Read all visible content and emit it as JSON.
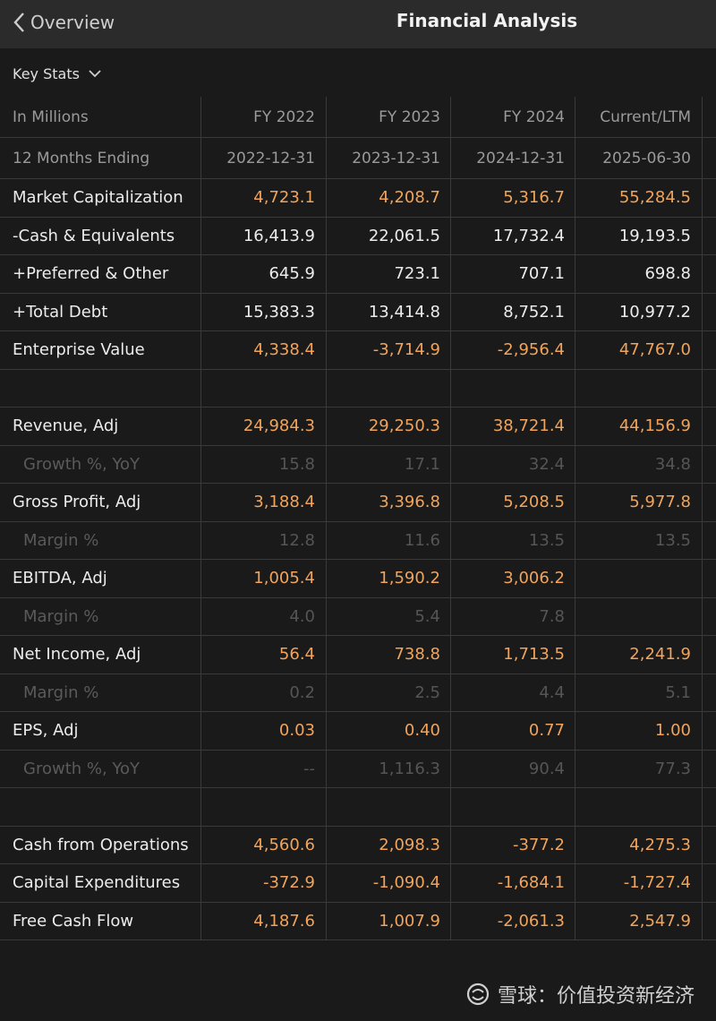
{
  "nav": {
    "back_label": "Overview",
    "title": "Financial Analysis"
  },
  "section": {
    "label": "Key Stats"
  },
  "table": {
    "header1": {
      "label": "In Millions",
      "cols": [
        "FY 2022",
        "FY 2023",
        "FY 2024",
        "Current/LTM"
      ]
    },
    "header2": {
      "label": "12 Months Ending",
      "cols": [
        "2022-12-31",
        "2023-12-31",
        "2024-12-31",
        "2025-06-30"
      ]
    },
    "rows": [
      {
        "label": "Market Capitalization",
        "values": [
          "4,723.1",
          "4,208.7",
          "5,316.7",
          "55,284.5"
        ],
        "style": "orange"
      },
      {
        "label": "-Cash & Equivalents",
        "values": [
          "16,413.9",
          "22,061.5",
          "17,732.4",
          "19,193.5"
        ],
        "style": "white"
      },
      {
        "label": "+Preferred & Other",
        "values": [
          "645.9",
          "723.1",
          "707.1",
          "698.8"
        ],
        "style": "white"
      },
      {
        "label": "+Total Debt",
        "values": [
          "15,383.3",
          "13,414.8",
          "8,752.1",
          "10,977.2"
        ],
        "style": "white"
      },
      {
        "label": "Enterprise Value",
        "values": [
          "4,338.4",
          "-3,714.9",
          "-2,956.4",
          "47,767.0"
        ],
        "style": "orange"
      },
      {
        "label": "",
        "values": [
          "",
          "",
          "",
          ""
        ],
        "style": "blank"
      },
      {
        "label": "Revenue, Adj",
        "values": [
          "24,984.3",
          "29,250.3",
          "38,721.4",
          "44,156.9"
        ],
        "style": "orange"
      },
      {
        "label": "Growth %, YoY",
        "values": [
          "15.8",
          "17.1",
          "32.4",
          "34.8"
        ],
        "style": "dim"
      },
      {
        "label": "Gross Profit, Adj",
        "values": [
          "3,188.4",
          "3,396.8",
          "5,208.5",
          "5,977.8"
        ],
        "style": "orange"
      },
      {
        "label": "Margin %",
        "values": [
          "12.8",
          "11.6",
          "13.5",
          "13.5"
        ],
        "style": "dim"
      },
      {
        "label": "EBITDA, Adj",
        "values": [
          "1,005.4",
          "1,590.2",
          "3,006.2",
          ""
        ],
        "style": "orange"
      },
      {
        "label": "Margin %",
        "values": [
          "4.0",
          "5.4",
          "7.8",
          ""
        ],
        "style": "dim"
      },
      {
        "label": "Net Income, Adj",
        "values": [
          "56.4",
          "738.8",
          "1,713.5",
          "2,241.9"
        ],
        "style": "orange"
      },
      {
        "label": "Margin %",
        "values": [
          "0.2",
          "2.5",
          "4.4",
          "5.1"
        ],
        "style": "dim"
      },
      {
        "label": "EPS, Adj",
        "values": [
          "0.03",
          "0.40",
          "0.77",
          "1.00"
        ],
        "style": "orange"
      },
      {
        "label": "Growth %, YoY",
        "values": [
          "--",
          "1,116.3",
          "90.4",
          "77.3"
        ],
        "style": "dim"
      },
      {
        "label": "",
        "values": [
          "",
          "",
          "",
          ""
        ],
        "style": "blank"
      },
      {
        "label": "Cash from Operations",
        "values": [
          "4,560.6",
          "2,098.3",
          "-377.2",
          "4,275.3"
        ],
        "style": "orange"
      },
      {
        "label": "Capital Expenditures",
        "values": [
          "-372.9",
          "-1,090.4",
          "-1,684.1",
          "-1,727.4"
        ],
        "style": "orange"
      },
      {
        "label": "Free Cash Flow",
        "values": [
          "4,187.6",
          "1,007.9",
          "-2,061.3",
          "2,547.9"
        ],
        "style": "orange"
      }
    ]
  },
  "watermark": {
    "text": "雪球：价值投资新经济"
  },
  "colors": {
    "accent": "#f0a45c",
    "background": "#1a1a1a",
    "topbar": "#2b2b2b"
  }
}
